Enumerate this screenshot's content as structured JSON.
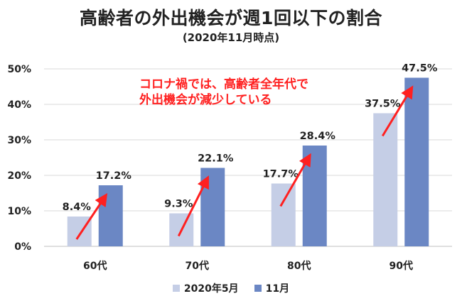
{
  "chart_data": {
    "type": "bar",
    "title": "高齢者の外出機会が週1回以下の割合",
    "subtitle": "(2020年11月時点)",
    "categories": [
      "60代",
      "70代",
      "80代",
      "90代"
    ],
    "series": [
      {
        "name": "2020年5月",
        "values": [
          8.4,
          9.3,
          17.7,
          37.5
        ],
        "color": "#c5cee6"
      },
      {
        "name": "11月",
        "values": [
          17.2,
          22.1,
          28.4,
          47.5
        ],
        "color": "#6b87c4"
      }
    ],
    "data_labels": [
      [
        "8.4%",
        "9.3%",
        "17.7%",
        "37.5%"
      ],
      [
        "17.2%",
        "22.1%",
        "28.4%",
        "47.5%"
      ]
    ],
    "ylim": [
      0,
      50
    ],
    "yticks": [
      0,
      10,
      20,
      30,
      40,
      50
    ],
    "ytick_labels": [
      "0%",
      "10%",
      "20%",
      "30%",
      "40%",
      "50%"
    ],
    "xlabel": "",
    "ylabel": "",
    "legend_position": "bottom",
    "annotation": {
      "lines": [
        "コロナ禍では、高齢者全年代で",
        "外出機会が減少している"
      ],
      "color": "#ff2020"
    },
    "arrow_color": "#ff2020"
  }
}
